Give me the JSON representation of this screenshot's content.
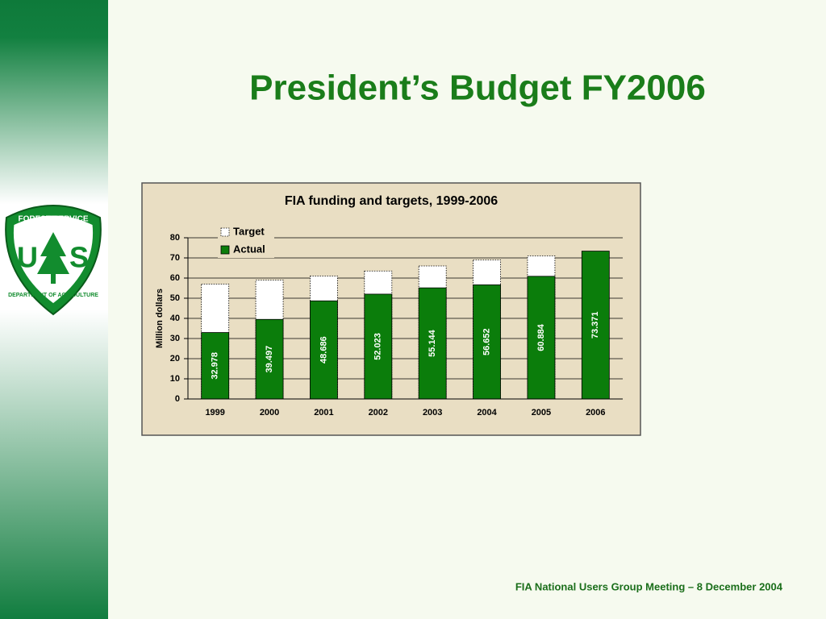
{
  "slide": {
    "title": "President’s Budget FY2006",
    "footer": "FIA National Users Group Meeting – 8 December 2004"
  },
  "logo": {
    "top": "FOREST SERVICE",
    "left": "U",
    "right": "S",
    "bottom": "DEPARTMENT OF AGRICULTURE"
  },
  "chart_data": {
    "type": "bar",
    "title": "FIA funding and targets, 1999-2006",
    "y_label": "Million dollars",
    "categories": [
      "1999",
      "2000",
      "2001",
      "2002",
      "2003",
      "2004",
      "2005",
      "2006"
    ],
    "series": [
      {
        "name": "Target",
        "color": "#ffffff",
        "values": [
          57,
          59,
          61,
          63.5,
          66,
          69,
          71,
          null
        ]
      },
      {
        "name": "Actual",
        "color": "#0b7d0b",
        "values": [
          32.978,
          39.497,
          48.686,
          52.023,
          55.144,
          56.652,
          60.884,
          73.371
        ]
      }
    ],
    "ylim": [
      0,
      80
    ],
    "yticks": [
      0,
      10,
      20,
      30,
      40,
      50,
      60,
      70,
      80
    ],
    "grid": true,
    "legend": "top-left"
  }
}
